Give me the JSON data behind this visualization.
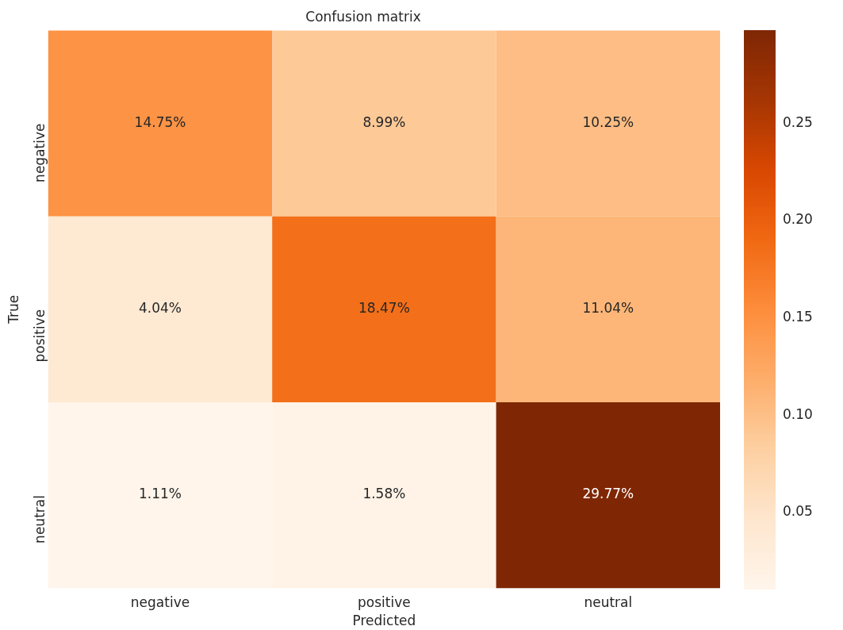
{
  "chart_data": {
    "type": "heatmap",
    "title": "Confusion matrix",
    "xlabel": "Predicted",
    "ylabel": "True",
    "categories": [
      "negative",
      "positive",
      "neutral"
    ],
    "y_categories": [
      "negative",
      "positive",
      "neutral"
    ],
    "cells": [
      [
        0.1475,
        0.0899,
        0.1025
      ],
      [
        0.0404,
        0.1847,
        0.1104
      ],
      [
        0.0111,
        0.0158,
        0.2977
      ]
    ],
    "cell_labels": [
      [
        "14.75%",
        "8.99%",
        "10.25%"
      ],
      [
        "4.04%",
        "18.47%",
        "11.04%"
      ],
      [
        "1.11%",
        "1.58%",
        "29.77%"
      ]
    ],
    "clim": [
      0.0111,
      0.2977
    ],
    "cticks": [
      0.05,
      {
        "value": 0.1,
        "label": "0.10"
      },
      0.15,
      {
        "value": 0.2,
        "label": "0.20"
      },
      0.25
    ]
  }
}
